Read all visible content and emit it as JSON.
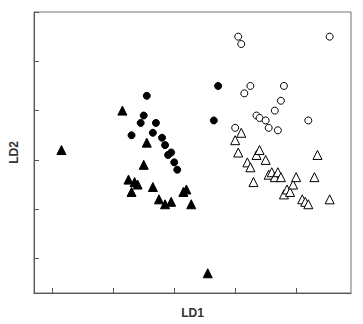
{
  "chart_data": {
    "type": "scatter",
    "xlabel": "LD1",
    "ylabel": "LD2",
    "xlim": [
      -2.3,
      2.9
    ],
    "ylim": [
      0.3,
      6.0
    ],
    "xticks": [
      -2,
      -1,
      0,
      1,
      2
    ],
    "yticks": [
      1,
      2,
      3,
      4,
      5,
      6
    ],
    "tick_labels": false,
    "grid": false,
    "series": [
      {
        "marker": "circle",
        "color": "#000000",
        "x": [
          -0.7,
          -0.55,
          -0.5,
          -0.45,
          -0.35,
          -0.3,
          -0.2,
          -0.15,
          -0.1,
          -0.05,
          0.0,
          0.05,
          0.65,
          0.72
        ],
        "values": [
          3.5,
          3.75,
          3.9,
          4.3,
          3.55,
          3.75,
          3.45,
          3.3,
          3.1,
          3.15,
          2.95,
          2.8,
          3.8,
          4.5
        ]
      },
      {
        "marker": "triangle",
        "color": "#000000",
        "x": [
          -1.85,
          -0.85,
          -0.75,
          -0.7,
          -0.65,
          -0.6,
          -0.5,
          -0.45,
          -0.35,
          -0.25,
          -0.15,
          -0.05,
          0.15,
          0.2,
          0.28,
          0.55
        ],
        "values": [
          3.2,
          4.0,
          2.6,
          2.35,
          2.55,
          2.5,
          2.9,
          3.35,
          2.45,
          2.2,
          2.1,
          2.15,
          2.35,
          2.4,
          2.1,
          0.7
        ]
      },
      {
        "marker": "open_circle",
        "color": "#000000",
        "x": [
          1.05,
          1.1,
          1.15,
          1.25,
          1.35,
          1.4,
          1.5,
          1.55,
          1.65,
          1.75,
          1.8,
          2.2,
          2.55,
          1.0,
          1.7
        ],
        "values": [
          5.5,
          5.35,
          4.35,
          4.5,
          3.9,
          3.85,
          3.8,
          3.65,
          4.0,
          4.2,
          4.5,
          3.8,
          5.5,
          3.65,
          3.6
        ]
      },
      {
        "marker": "open_triangle",
        "color": "#000000",
        "x": [
          1.0,
          1.05,
          1.1,
          1.2,
          1.25,
          1.3,
          1.35,
          1.4,
          1.5,
          1.55,
          1.6,
          1.65,
          1.7,
          1.75,
          1.8,
          1.85,
          1.9,
          1.95,
          2.0,
          2.1,
          2.15,
          2.2,
          2.3,
          2.35,
          2.55
        ],
        "values": [
          3.4,
          3.15,
          3.55,
          2.95,
          2.85,
          2.55,
          3.1,
          3.2,
          3.0,
          2.7,
          2.75,
          2.65,
          2.75,
          2.65,
          2.3,
          2.4,
          2.35,
          2.5,
          2.65,
          2.2,
          2.15,
          2.1,
          2.65,
          3.1,
          2.2
        ]
      }
    ]
  }
}
